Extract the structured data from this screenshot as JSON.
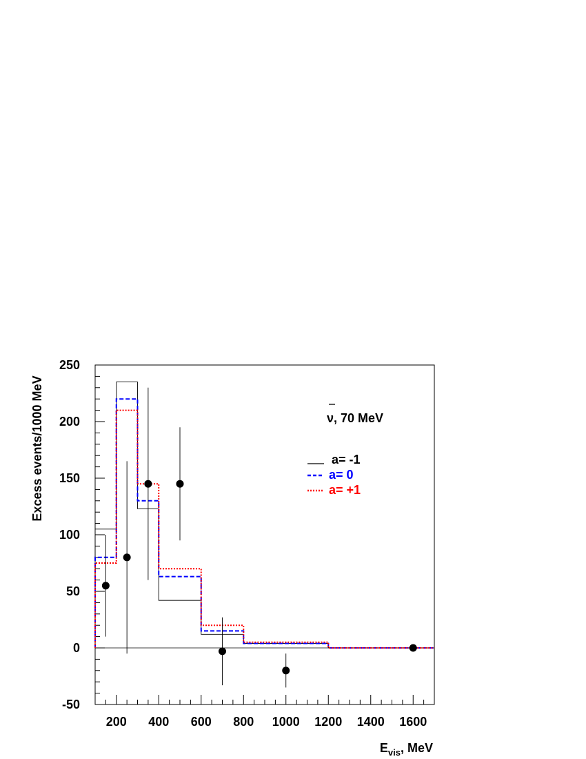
{
  "chart_data": {
    "type": "line",
    "xlabel_main": "E",
    "xlabel_sub": "vis",
    "xlabel_rest": ", MeV",
    "ylabel": "Excess events/1000 MeV",
    "xlim": [
      100,
      1700
    ],
    "ylim": [
      -50,
      250
    ],
    "x_ticks": [
      200,
      400,
      600,
      800,
      1000,
      1200,
      1400,
      1600
    ],
    "y_ticks": [
      -50,
      0,
      50,
      100,
      150,
      200,
      250
    ],
    "annotation": "ν, 70 MeV",
    "legend_position": "upper-right",
    "series": [
      {
        "name": "a= -1",
        "color": "#000000",
        "style": "solid",
        "bin_edges": [
          100,
          200,
          300,
          400,
          600,
          800,
          1200,
          1700
        ],
        "values": [
          105,
          235,
          123,
          42,
          12,
          4,
          0
        ]
      },
      {
        "name": "a= 0",
        "color": "#0000ff",
        "style": "dashed",
        "bin_edges": [
          100,
          200,
          300,
          400,
          600,
          800,
          1200,
          1700
        ],
        "values": [
          80,
          220,
          130,
          63,
          15,
          4,
          0
        ]
      },
      {
        "name": "a= +1",
        "color": "#ff0000",
        "style": "dotted",
        "bin_edges": [
          100,
          200,
          300,
          400,
          600,
          800,
          1200,
          1700
        ],
        "values": [
          75,
          210,
          145,
          70,
          20,
          5,
          0
        ]
      }
    ],
    "data_points": [
      {
        "x": 150,
        "y": 55,
        "err_low": 10,
        "err_high": 100
      },
      {
        "x": 250,
        "y": 80,
        "err_low": -5,
        "err_high": 165
      },
      {
        "x": 350,
        "y": 145,
        "err_low": 60,
        "err_high": 230
      },
      {
        "x": 500,
        "y": 145,
        "err_low": 95,
        "err_high": 195
      },
      {
        "x": 700,
        "y": -3,
        "err_low": -33,
        "err_high": 27
      },
      {
        "x": 1000,
        "y": -20,
        "err_low": -35,
        "err_high": -5
      },
      {
        "x": 1600,
        "y": 0,
        "err_low": 0,
        "err_high": 0
      }
    ]
  }
}
